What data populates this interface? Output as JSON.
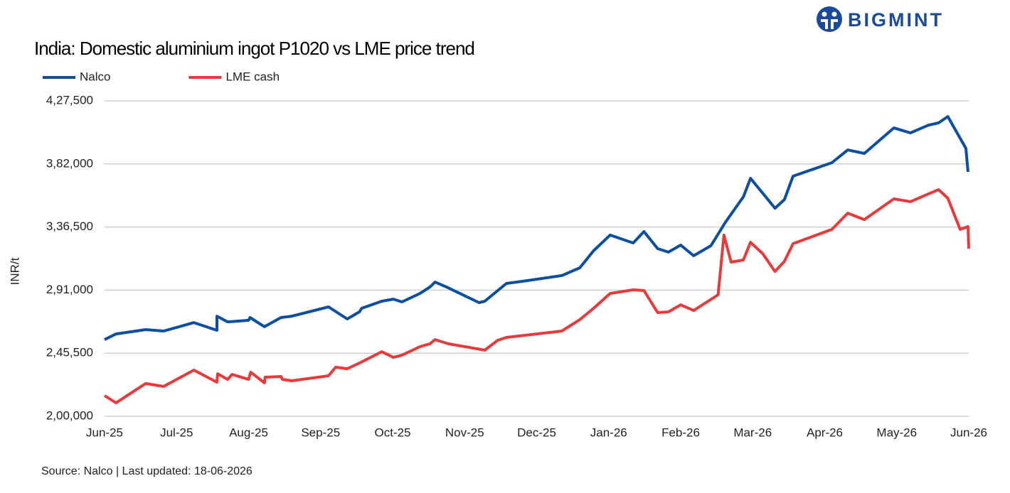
{
  "logo": "BIGMINT",
  "chart_data": {
    "type": "line",
    "title": "India: Domestic aluminium ingot P1020 vs LME price trend",
    "y_label": "INR/t",
    "source": "Source: Nalco | Last updated: 18-06-2026",
    "xlim": [
      0,
      12
    ],
    "xticks": [
      {
        "value": 0,
        "label": "Jun-25"
      },
      {
        "value": 1,
        "label": "Jul-25"
      },
      {
        "value": 2,
        "label": "Aug-25"
      },
      {
        "value": 3,
        "label": "Sep-25"
      },
      {
        "value": 4,
        "label": "Oct-25"
      },
      {
        "value": 5,
        "label": "Nov-25"
      },
      {
        "value": 6,
        "label": "Dec-25"
      },
      {
        "value": 7,
        "label": "Jan-26"
      },
      {
        "value": 8,
        "label": "Feb-26"
      },
      {
        "value": 9,
        "label": "Mar-26"
      },
      {
        "value": 10,
        "label": "Apr-26"
      },
      {
        "value": 11,
        "label": "May-26"
      },
      {
        "value": 12,
        "label": "Jun-26"
      }
    ],
    "ylim": [
      200000,
      427500
    ],
    "yticks": [
      {
        "value": 200000,
        "label": "2,00,000"
      },
      {
        "value": 245500,
        "label": "2,45,500"
      },
      {
        "value": 291000,
        "label": "2,91,000"
      },
      {
        "value": 336500,
        "label": "3,36,500"
      },
      {
        "value": 382000,
        "label": "3,82,000"
      },
      {
        "value": 427500,
        "label": "4,27,500"
      }
    ],
    "grid": true,
    "legend": "top-left",
    "series": [
      {
        "name": "Nalco",
        "color": "#0b4ea2",
        "x": [
          0,
          0.16,
          0.57,
          0.82,
          1.24,
          1.56,
          1.56,
          1.71,
          2.0,
          2.02,
          2.22,
          2.45,
          2.6,
          3.11,
          3.37,
          3.54,
          3.57,
          3.85,
          4.01,
          4.13,
          4.38,
          4.52,
          4.59,
          4.77,
          5.2,
          5.28,
          5.58,
          5.81,
          6.35,
          6.6,
          6.79,
          7.02,
          7.34,
          7.49,
          7.68,
          7.83,
          8.0,
          8.18,
          8.42,
          8.62,
          8.87,
          8.97,
          9.14,
          9.31,
          9.44,
          9.56,
          10.1,
          10.32,
          10.55,
          10.96,
          11.19,
          11.44,
          11.58,
          11.71,
          11.96,
          11.99
        ],
        "values": [
          255300,
          259400,
          262500,
          261500,
          267600,
          262000,
          272200,
          268100,
          269200,
          271200,
          264600,
          271200,
          272200,
          278900,
          270200,
          275300,
          277900,
          283000,
          284500,
          282500,
          288600,
          293300,
          296800,
          292700,
          282000,
          283000,
          295800,
          297400,
          301500,
          307100,
          319400,
          330700,
          325000,
          333200,
          320900,
          318400,
          323500,
          315800,
          323000,
          339900,
          358300,
          371600,
          360900,
          350100,
          356300,
          373200,
          382900,
          392100,
          389600,
          408000,
          404400,
          410000,
          411600,
          416200,
          393200,
          376300
        ]
      },
      {
        "name": "LME cash",
        "color": "#e83a3a",
        "x": [
          0,
          0.16,
          0.57,
          0.82,
          1.24,
          1.56,
          1.57,
          1.71,
          1.77,
          2.0,
          2.03,
          2.22,
          2.23,
          2.45,
          2.47,
          2.6,
          3.11,
          3.21,
          3.37,
          3.54,
          3.85,
          4.01,
          4.13,
          4.38,
          4.52,
          4.59,
          4.77,
          5.28,
          5.46,
          5.58,
          6.35,
          6.6,
          6.79,
          7.02,
          7.34,
          7.49,
          7.68,
          7.83,
          8.0,
          8.18,
          8.52,
          8.6,
          8.7,
          8.87,
          8.97,
          9.14,
          9.31,
          9.44,
          9.56,
          10.1,
          10.32,
          10.55,
          10.96,
          11.19,
          11.58,
          11.71,
          11.88,
          11.99,
          12
        ],
        "values": [
          214900,
          209700,
          223600,
          221500,
          233300,
          224600,
          230700,
          226600,
          230200,
          226600,
          231800,
          224100,
          228200,
          228700,
          226600,
          225600,
          229200,
          235400,
          234300,
          238400,
          246600,
          242500,
          244100,
          250200,
          252300,
          255300,
          252300,
          247700,
          254800,
          256900,
          261500,
          269700,
          277900,
          288600,
          291200,
          290700,
          274800,
          275300,
          280400,
          276300,
          287600,
          330700,
          311200,
          312700,
          325500,
          317300,
          304500,
          311700,
          324500,
          334800,
          346500,
          341900,
          356800,
          354800,
          363500,
          357300,
          334800,
          336800,
          320900
        ]
      }
    ]
  }
}
